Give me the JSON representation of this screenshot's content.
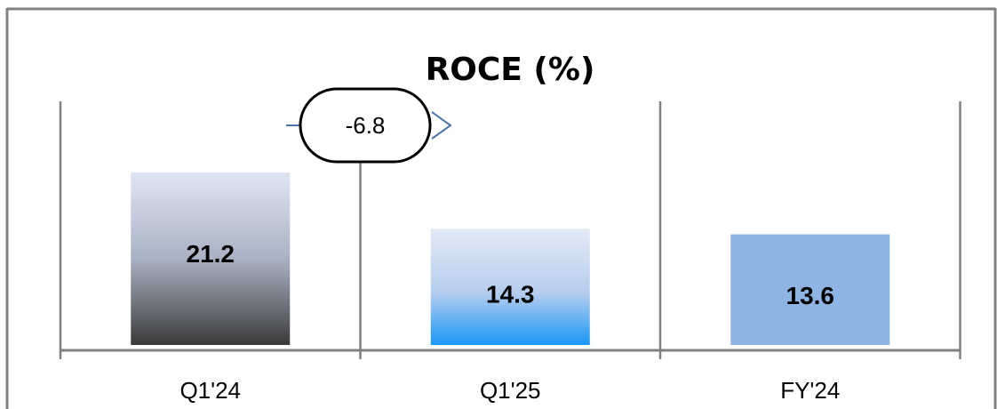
{
  "chart_data": {
    "type": "bar",
    "title": "ROCE (%)",
    "xlabel": "",
    "ylabel": "",
    "categories": [
      "Q1'24",
      "Q1'25",
      "FY'24"
    ],
    "values": [
      21.2,
      14.3,
      13.6
    ],
    "data_labels": [
      "21.2",
      "14.3",
      "13.6"
    ],
    "ylim": [
      0,
      30
    ],
    "grid": false,
    "annotation": {
      "label": "-6.8",
      "from": "Q1'24",
      "to": "Q1'25"
    },
    "colors": {
      "bar_q1_24": [
        "#dfe6f3",
        "#3a3a3a"
      ],
      "bar_q1_25": [
        "#e4eaf5",
        "#1a97f7"
      ],
      "bar_fy_24": "#8eb4e3",
      "arrow": "#4a76b0",
      "axis": "#808080"
    }
  }
}
